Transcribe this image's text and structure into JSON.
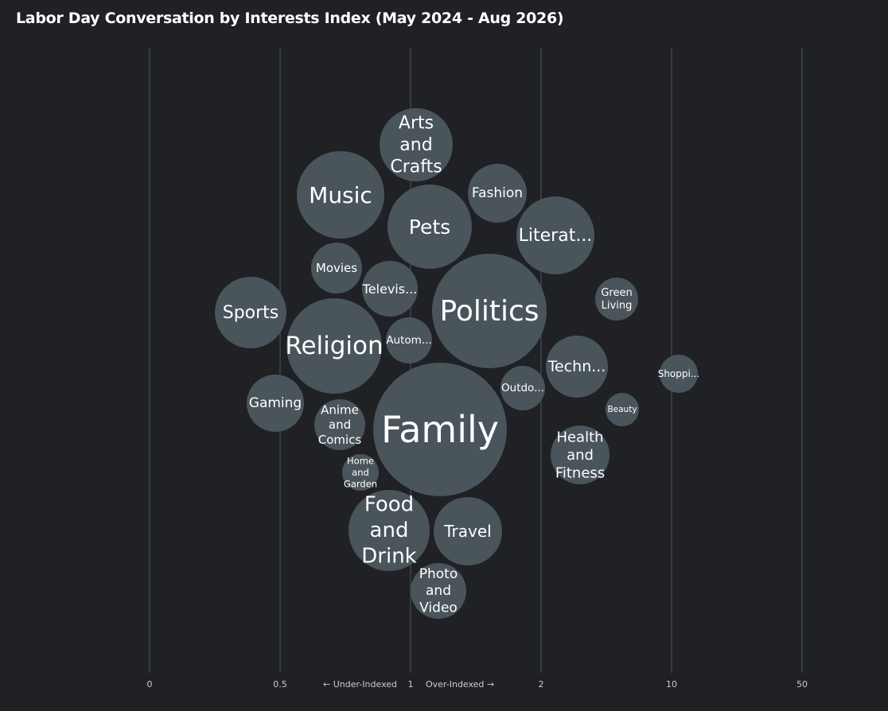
{
  "chart_data": {
    "type": "bubble",
    "title": "Labor Day Conversation by Interests Index (May 2024 - Aug 2026)",
    "x_ticks": [
      "0",
      "0.5",
      "1",
      "2",
      "10",
      "50"
    ],
    "x_axis_notes": {
      "under": "← Under-Indexed",
      "over": "Over-Indexed →"
    },
    "grid": true,
    "colors": {
      "background": "#1f2124",
      "bubble": "#4a545b",
      "grid": "#4a4d51",
      "text": "#ffffff"
    },
    "bubbles": [
      {
        "label": "Family",
        "index": 1.2,
        "size": 100
      },
      {
        "label": "Politics",
        "index": 1.6,
        "size": 72
      },
      {
        "label": "Religion",
        "index": 0.9,
        "size": 51
      },
      {
        "label": "Music",
        "index": 0.87,
        "size": 42
      },
      {
        "label": "Pets",
        "index": 1.15,
        "size": 39
      },
      {
        "label": "Food and Drink",
        "index": 0.95,
        "size": 37
      },
      {
        "label": "Literat...",
        "index": 2.15,
        "size": 33
      },
      {
        "label": "Sports",
        "index": 0.4,
        "size": 29
      },
      {
        "label": "Arts and Crafts",
        "index": 1.03,
        "size": 30
      },
      {
        "label": "Travel",
        "index": 1.45,
        "size": 26
      },
      {
        "label": "Health and Fitness",
        "index": 2.4,
        "size": 20
      },
      {
        "label": "Techn...",
        "index": 2.35,
        "size": 21
      },
      {
        "label": "Gaming",
        "index": 0.48,
        "size": 18
      },
      {
        "label": "Fashion",
        "index": 1.65,
        "size": 19
      },
      {
        "label": "Photo and Video",
        "index": 1.1,
        "size": 17
      },
      {
        "label": "Televis...",
        "index": 0.95,
        "size": 16.5
      },
      {
        "label": "Anime and Comics",
        "index": 0.78,
        "size": 13.5
      },
      {
        "label": "Movies",
        "index": 0.75,
        "size": 13.5
      },
      {
        "label": "Outdo...",
        "index": 1.85,
        "size": 11.2
      },
      {
        "label": "Autom...",
        "index": 0.99,
        "size": 11.3
      },
      {
        "label": "Green Living",
        "index": 5.5,
        "size": 9.8
      },
      {
        "label": "Home and Garden",
        "index": 0.85,
        "size": 7.6
      },
      {
        "label": "Shoppi...",
        "index": 11,
        "size": 8.3
      },
      {
        "label": "Beauty",
        "index": 6,
        "size": 5.9
      }
    ]
  }
}
